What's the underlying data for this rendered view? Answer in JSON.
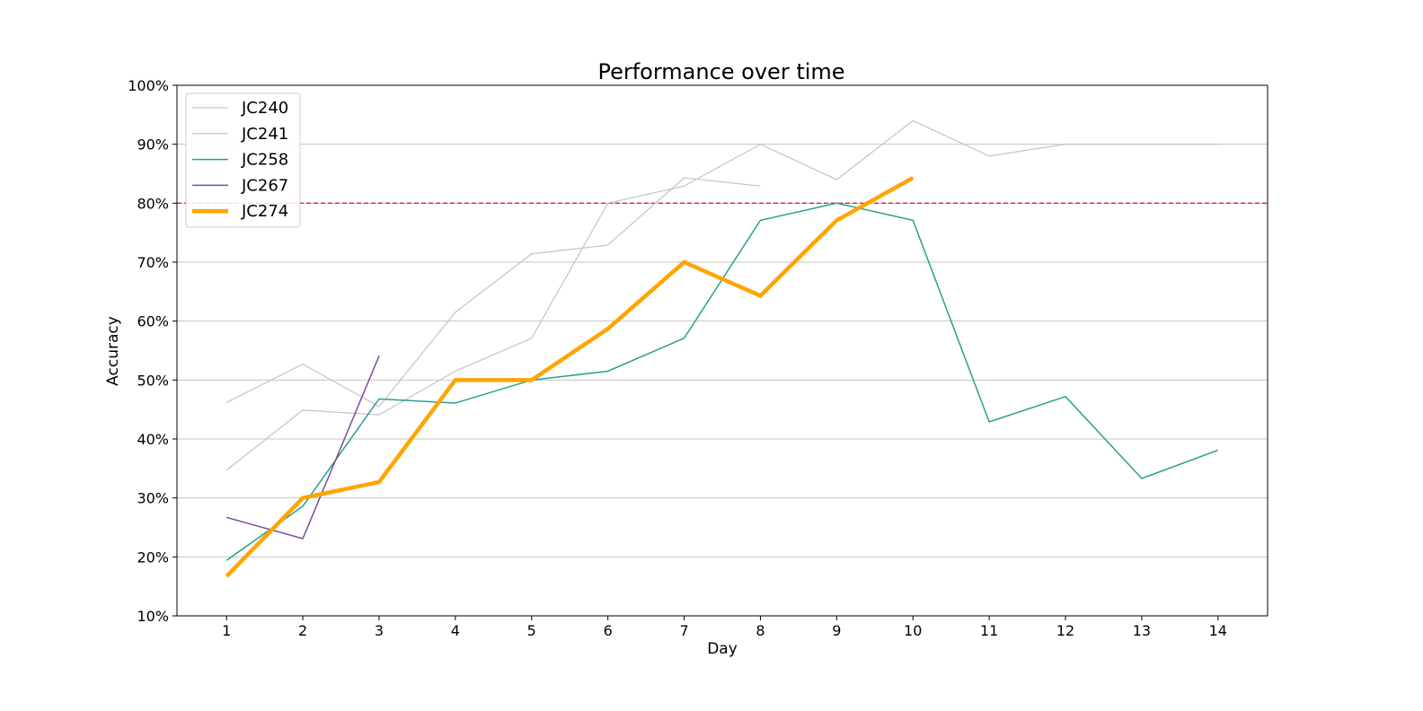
{
  "chart_data": {
    "type": "line",
    "title": "Performance over time",
    "xlabel": "Day",
    "ylabel": "Accuracy",
    "xlim": [
      0.35,
      14.65
    ],
    "ylim": [
      0.1,
      1.0
    ],
    "x_ticks": [
      1,
      2,
      3,
      4,
      5,
      6,
      7,
      8,
      9,
      10,
      11,
      12,
      13,
      14
    ],
    "y_ticks": [
      0.1,
      0.2,
      0.3,
      0.4,
      0.5,
      0.6,
      0.7,
      0.8,
      0.9,
      1.0
    ],
    "y_tick_labels": [
      "10%",
      "20%",
      "30%",
      "40%",
      "50%",
      "60%",
      "70%",
      "80%",
      "90%",
      "100%"
    ],
    "grid": "horizontal",
    "legend_position": "top-left",
    "reference_line": {
      "y": 0.8,
      "color": "#d62728",
      "style": "dashed"
    },
    "series": [
      {
        "name": "JC240",
        "color": "#c8c8c8",
        "width": 1.3,
        "x": [
          1,
          2,
          3,
          4,
          5,
          6,
          7,
          8
        ],
        "y": [
          0.462,
          0.527,
          0.455,
          0.615,
          0.714,
          0.729,
          0.843,
          0.829
        ]
      },
      {
        "name": "JC241",
        "color": "#c8c8c8",
        "width": 1.3,
        "x": [
          1,
          2,
          3,
          4,
          5,
          6,
          7,
          8,
          9,
          10,
          11,
          12,
          13,
          14
        ],
        "y": [
          0.347,
          0.449,
          0.441,
          0.515,
          0.571,
          0.8,
          0.829,
          0.9,
          0.84,
          0.94,
          0.88,
          0.9,
          0.9,
          0.9
        ]
      },
      {
        "name": "JC258",
        "color": "#26a08f",
        "width": 1.5,
        "x": [
          1,
          2,
          3,
          4,
          5,
          6,
          7,
          8,
          9,
          10,
          11,
          12,
          13,
          14
        ],
        "y": [
          0.194,
          0.286,
          0.468,
          0.461,
          0.5,
          0.515,
          0.571,
          0.771,
          0.8,
          0.771,
          0.429,
          0.472,
          0.333,
          0.381
        ]
      },
      {
        "name": "JC267",
        "color": "#7b4d9a",
        "width": 1.5,
        "x": [
          1,
          2,
          3
        ],
        "y": [
          0.267,
          0.231,
          0.541
        ]
      },
      {
        "name": "JC274",
        "color": "#ffa500",
        "width": 4.5,
        "x": [
          1,
          2,
          3,
          4,
          5,
          6,
          7,
          8,
          9,
          10
        ],
        "y": [
          0.167,
          0.3,
          0.327,
          0.5,
          0.5,
          0.587,
          0.7,
          0.643,
          0.771,
          0.843
        ]
      }
    ]
  }
}
